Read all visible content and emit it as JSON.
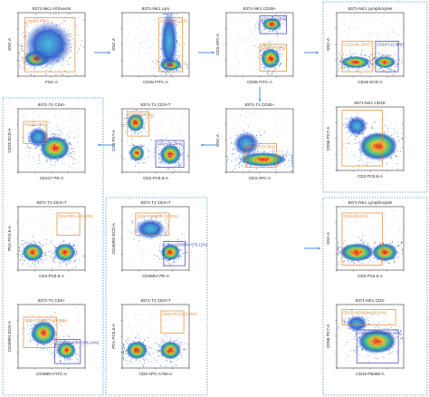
{
  "chart_data": {
    "type": "scatter",
    "description_note": "",
    "panels": [
      {
        "id": "p1",
        "title": "8371-NK1  All Events",
        "xlabel": "FSC-A",
        "ylabel": "SSC-A",
        "gates": [
          {
            "label": "Lym(63.67%)",
            "color": "#e08a2e"
          }
        ]
      },
      {
        "id": "p2",
        "title": "8371-NK1  Lym",
        "xlabel": "CD45 FITC-A",
        "ylabel": "SSC-A",
        "gates": [
          {
            "label": "CD45+(95.12%)",
            "color": "#e08a2e"
          }
        ]
      },
      {
        "id": "p3",
        "title": "8371-NK1  CD45+",
        "xlabel": "CD45 FITC-A",
        "ylabel": "CD3 APC-A",
        "gates": [
          {
            "label": "CD3+(24.55%)",
            "color": "#3c3cb4"
          },
          {
            "label": "CD3-(67.09%)",
            "color": "#e08a2e"
          }
        ]
      },
      {
        "id": "p4",
        "title": "8371-NK1  Lymphocytes",
        "xlabel": "CD19 ECD-A",
        "ylabel": "SSC-A",
        "gates": [
          {
            "label": "CD19-(86.22%)",
            "color": "#e08a2e"
          },
          {
            "label": "CD19+(11.99%)",
            "color": "#3c3cb4"
          }
        ]
      },
      {
        "id": "p5",
        "title": "8371-T1  CD4+",
        "xlabel": "CD127 PE-A",
        "ylabel": "CD25 ECD-A",
        "gates": [
          {
            "label": "Treg(4.16%)",
            "color": "#e08a2e"
          }
        ]
      },
      {
        "id": "p6",
        "title": "8371-T1  CD3+T",
        "xlabel": "CD4 PC5.5-A",
        "ylabel": "CD8 PC7-A",
        "gates": [
          {
            "label": "CD8+(50.99%)",
            "color": "#e08a2e"
          },
          {
            "label": "CD4+(47.25%)",
            "color": "#3c3cb4"
          }
        ]
      },
      {
        "id": "p7",
        "title": "8371-T1  CD45+",
        "xlabel": "CD3 APC-A",
        "ylabel": "SSC-A",
        "gates": [
          {
            "label": "CD3+T(72.05%)",
            "color": "#e08a2e"
          }
        ]
      },
      {
        "id": "p8",
        "title": "8371-NK1  CD19-",
        "xlabel": "CD3 PC5.5-A",
        "ylabel": "CD56 PC7-A",
        "gates": [
          {
            "label": "",
            "color": "#e08a2e"
          }
        ]
      },
      {
        "id": "p9",
        "title": "8371-T1  CD3+T",
        "xlabel": "CD4 PC5.5-A",
        "ylabel": "PD1 PC5.5-A",
        "gates": [
          {
            "label": "CD4+PD1+(10.63%)",
            "color": "#e08a2e"
          }
        ]
      },
      {
        "id": "p10",
        "title": "8371-T1  CD3+T",
        "xlabel": "CD45RA PE-A",
        "ylabel": "CD45RO ECD-A",
        "gates": [
          {
            "label": "CD4+CD45RO+(3.41%)",
            "color": "#e08a2e"
          },
          {
            "label": "CD4+CD45RA+(75.12%)",
            "color": "#3c3cb4"
          }
        ]
      },
      {
        "id": "p11",
        "title": "8371-NK1  Lymphocytes",
        "xlabel": "CD3 PC5.5-A",
        "ylabel": "SSC-A",
        "gates": [
          {
            "label": "CD3-(82.22%)",
            "color": "#e08a2e"
          }
        ]
      },
      {
        "id": "p12",
        "title": "8371-T1  CD4+",
        "xlabel": "CD45RA FITC-A",
        "ylabel": "CD45RO ECD-A",
        "gates": [
          {
            "label": "CD4+CD45RO+(35.95%)",
            "color": "#e08a2e"
          },
          {
            "label": "CD4+CD45RA+(45.14%)",
            "color": "#3c3cb4"
          }
        ]
      },
      {
        "id": "p13",
        "title": "8371-T1  CD3+T",
        "xlabel": "CD8 APC-A750-A",
        "ylabel": "PD1 PC5.5-A",
        "gates": [
          {
            "label": "CD8+PD1+(12.04%)",
            "color": "#e08a2e"
          }
        ]
      },
      {
        "id": "p14",
        "title": "8371-NK1  CD3-",
        "xlabel": "CD16 PB450-A",
        "ylabel": "CD56 PC7-A",
        "gates": [
          {
            "label": "CD16+CD56dim(59.20%)",
            "color": "#e08a2e"
          },
          {
            "label": "CD16-CD56bright(4.24%)",
            "color": "#3c3cb4"
          }
        ]
      }
    ]
  },
  "colors": {
    "accent": "#e08a2e",
    "gate_blue": "#3c3cb4",
    "arrow": "#4a90d9"
  }
}
